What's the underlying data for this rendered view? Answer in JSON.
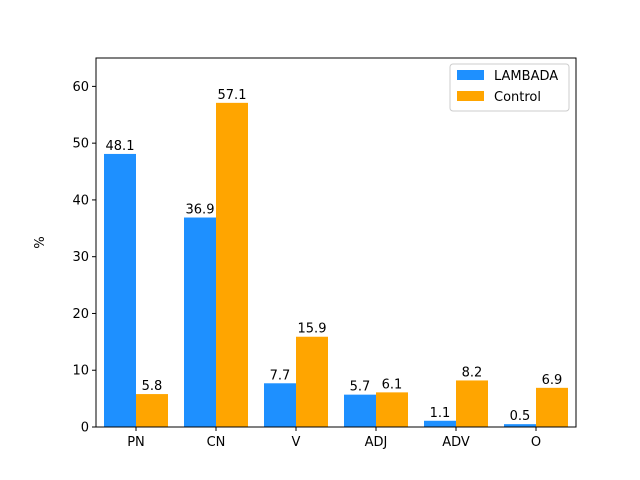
{
  "chart_data": {
    "type": "bar",
    "categories": [
      "PN",
      "CN",
      "V",
      "ADJ",
      "ADV",
      "O"
    ],
    "series": [
      {
        "name": "LAMBADA",
        "values": [
          48.1,
          36.9,
          7.7,
          5.7,
          1.1,
          0.5
        ],
        "color": "#1e90ff"
      },
      {
        "name": "Control",
        "values": [
          5.8,
          57.1,
          15.9,
          6.1,
          8.2,
          6.9
        ],
        "color": "#ffa500"
      }
    ],
    "ylabel": "%",
    "ylim": [
      0,
      65
    ],
    "yticks": [
      0,
      10,
      20,
      30,
      40,
      50,
      60
    ],
    "grid": false,
    "legend_position": "top-right",
    "value_labels": true
  }
}
